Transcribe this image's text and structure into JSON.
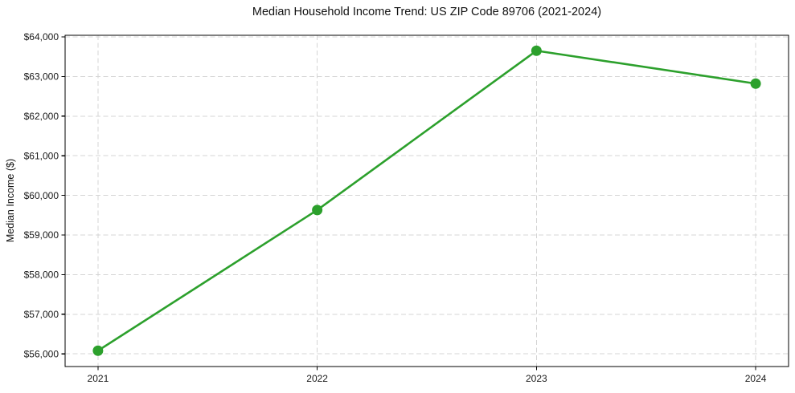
{
  "figure": {
    "title": "Median Household Income Trend: US ZIP Code 89706 (2021-2024)"
  },
  "chart_data": {
    "type": "line",
    "title": "Median Household Income Trend: US ZIP Code 89706 (2021-2024)",
    "xlabel": "",
    "ylabel": "Median Income ($)",
    "categories": [
      "2021",
      "2022",
      "2023",
      "2024"
    ],
    "series": [
      {
        "name": "Median Household Income",
        "values": [
          56080,
          59630,
          63650,
          62820
        ]
      }
    ],
    "x_tick_labels": [
      "2021",
      "2022",
      "2023",
      "2024"
    ],
    "yticks": [
      56000,
      57000,
      58000,
      59000,
      60000,
      61000,
      62000,
      63000,
      64000
    ],
    "ytick_labels": [
      "$56,000",
      "$57,000",
      "$58,000",
      "$59,000",
      "$60,000",
      "$61,000",
      "$62,000",
      "$63,000",
      "$64,000"
    ],
    "ylim": [
      55680,
      64040
    ],
    "grid": true,
    "grid_linestyle": "dashed",
    "legend_position": "none",
    "colors": {
      "line": "#2ca02c",
      "marker": "#2ca02c",
      "grid": "#d4d4d4",
      "spine": "#000000",
      "tick_text": "#1a1a1a",
      "background": "#ffffff"
    }
  }
}
